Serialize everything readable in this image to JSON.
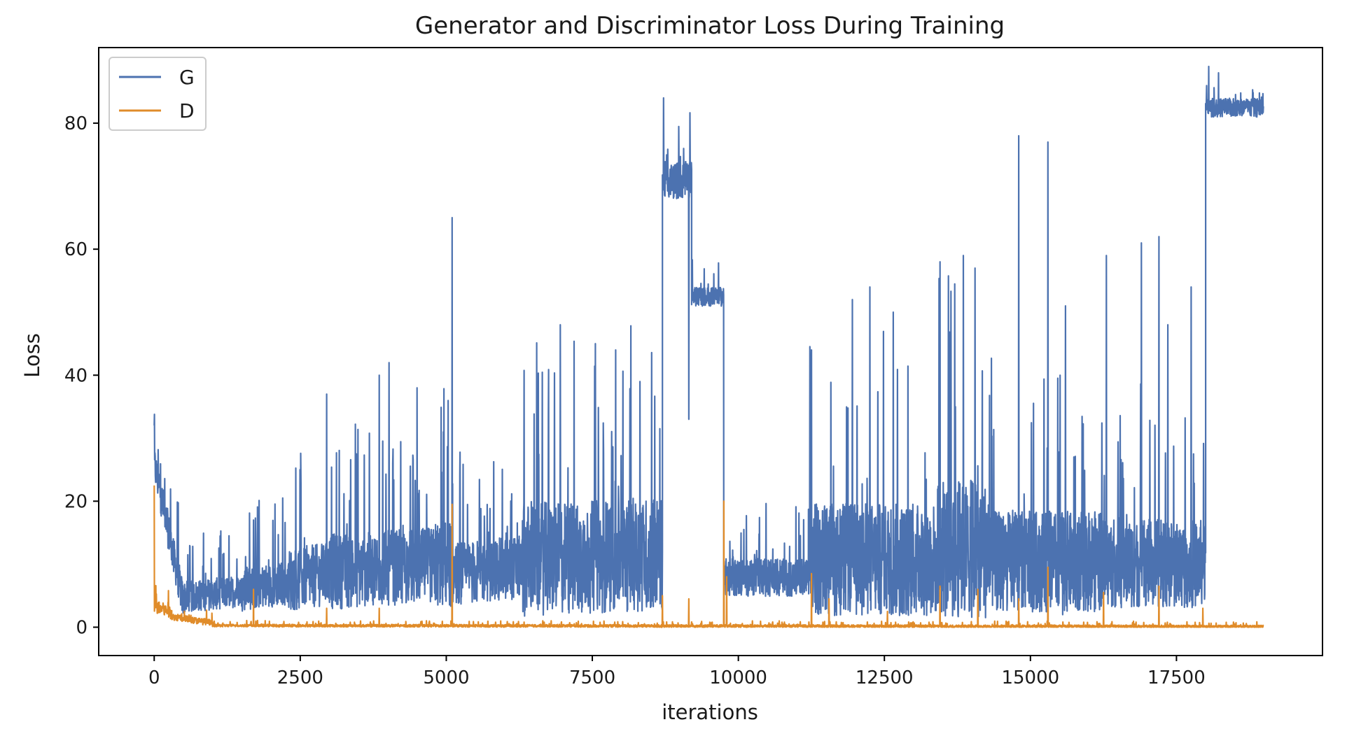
{
  "chart_data": {
    "type": "line",
    "title": "Generator and Discriminator Loss During Training",
    "xlabel": "iterations",
    "ylabel": "Loss",
    "xlim": [
      -950,
      20000
    ],
    "ylim": [
      -4.5,
      92
    ],
    "x_ticks": [
      0,
      2500,
      5000,
      7500,
      10000,
      12500,
      15000,
      17500
    ],
    "y_ticks": [
      0,
      20,
      40,
      60,
      80
    ],
    "grid": false,
    "legend_position": "top-left",
    "total_iterations": 18990,
    "series": [
      {
        "name": "G",
        "color": "#4c72b0",
        "segments": [
          {
            "x": [
              0,
              500
            ],
            "base": [
              25,
              3
            ],
            "spread": 6
          },
          {
            "x": [
              500,
              1500
            ],
            "base": [
              4,
              5
            ],
            "spread": 5
          },
          {
            "x": [
              1500,
              2300
            ],
            "base": [
              5,
              6
            ],
            "spread": 7
          },
          {
            "x": [
              2300,
              3000
            ],
            "base": [
              6,
              7
            ],
            "spread": 10
          },
          {
            "x": [
              3000,
              4800
            ],
            "base": [
              7,
              8
            ],
            "spread": 12
          },
          {
            "x": [
              4800,
              5100
            ],
            "base": [
              8,
              8
            ],
            "spread": 14
          },
          {
            "x": [
              5100,
              6300
            ],
            "base": [
              7,
              8
            ],
            "spread": 10
          },
          {
            "x": [
              6300,
              8700
            ],
            "base": [
              8,
              9
            ],
            "spread": 18
          },
          {
            "x": [
              8700,
              9200
            ],
            "base": [
              70,
              70
            ],
            "spread": 6
          },
          {
            "x": [
              9200,
              9750
            ],
            "base": [
              52,
              52
            ],
            "spread": 3
          },
          {
            "x": [
              9750,
              11200
            ],
            "base": [
              7,
              7
            ],
            "spread": 6
          },
          {
            "x": [
              11200,
              13400
            ],
            "base": [
              8,
              8
            ],
            "spread": 18
          },
          {
            "x": [
              13400,
              14300
            ],
            "base": [
              9,
              9
            ],
            "spread": 22
          },
          {
            "x": [
              14300,
              16200
            ],
            "base": [
              8,
              8
            ],
            "spread": 16
          },
          {
            "x": [
              16200,
              18000
            ],
            "base": [
              8,
              8
            ],
            "spread": 14
          },
          {
            "x": [
              18000,
              18990
            ],
            "base": [
              82,
              82
            ],
            "spread": 3
          }
        ],
        "spikes": [
          {
            "x": 0,
            "y": 32
          },
          {
            "x": 1700,
            "y": 17
          },
          {
            "x": 2950,
            "y": 37
          },
          {
            "x": 3850,
            "y": 40
          },
          {
            "x": 4020,
            "y": 42
          },
          {
            "x": 4500,
            "y": 38
          },
          {
            "x": 4950,
            "y": 31
          },
          {
            "x": 5100,
            "y": 65
          },
          {
            "x": 6950,
            "y": 48
          },
          {
            "x": 7550,
            "y": 45
          },
          {
            "x": 7900,
            "y": 44
          },
          {
            "x": 8720,
            "y": 84
          },
          {
            "x": 9150,
            "y": 33
          },
          {
            "x": 11250,
            "y": 44
          },
          {
            "x": 11950,
            "y": 52
          },
          {
            "x": 12250,
            "y": 54
          },
          {
            "x": 12650,
            "y": 50
          },
          {
            "x": 13450,
            "y": 58
          },
          {
            "x": 13850,
            "y": 59
          },
          {
            "x": 14050,
            "y": 57
          },
          {
            "x": 14800,
            "y": 78
          },
          {
            "x": 15300,
            "y": 77
          },
          {
            "x": 15600,
            "y": 51
          },
          {
            "x": 16300,
            "y": 59
          },
          {
            "x": 16900,
            "y": 61
          },
          {
            "x": 17200,
            "y": 62
          },
          {
            "x": 17350,
            "y": 48
          },
          {
            "x": 17750,
            "y": 54
          },
          {
            "x": 18050,
            "y": 89
          }
        ],
        "dips": [
          {
            "x": 9150,
            "y": 33
          },
          {
            "x": 15550,
            "y": 2
          }
        ]
      },
      {
        "name": "D",
        "color": "#e08c2a",
        "segments": [
          {
            "x": [
              0,
              300
            ],
            "base": [
              3,
              2
            ],
            "spread": 2
          },
          {
            "x": [
              300,
              1000
            ],
            "base": [
              1.5,
              0.5
            ],
            "spread": 1
          },
          {
            "x": [
              1000,
              18990
            ],
            "base": [
              0.2,
              0.05
            ],
            "spread": 0.4
          }
        ],
        "spikes": [
          {
            "x": 0,
            "y": 22.5
          },
          {
            "x": 1700,
            "y": 6
          },
          {
            "x": 2950,
            "y": 3
          },
          {
            "x": 3850,
            "y": 3
          },
          {
            "x": 5100,
            "y": 19.5
          },
          {
            "x": 8700,
            "y": 5
          },
          {
            "x": 9150,
            "y": 4.5
          },
          {
            "x": 9750,
            "y": 20
          },
          {
            "x": 9800,
            "y": 8
          },
          {
            "x": 11250,
            "y": 8.5
          },
          {
            "x": 11550,
            "y": 4.5
          },
          {
            "x": 12550,
            "y": 2.5
          },
          {
            "x": 13450,
            "y": 6.5
          },
          {
            "x": 14100,
            "y": 6
          },
          {
            "x": 14800,
            "y": 4.5
          },
          {
            "x": 15300,
            "y": 9.5
          },
          {
            "x": 16250,
            "y": 5.5
          },
          {
            "x": 17200,
            "y": 6.5
          },
          {
            "x": 17950,
            "y": 3
          }
        ],
        "dips": []
      }
    ]
  }
}
